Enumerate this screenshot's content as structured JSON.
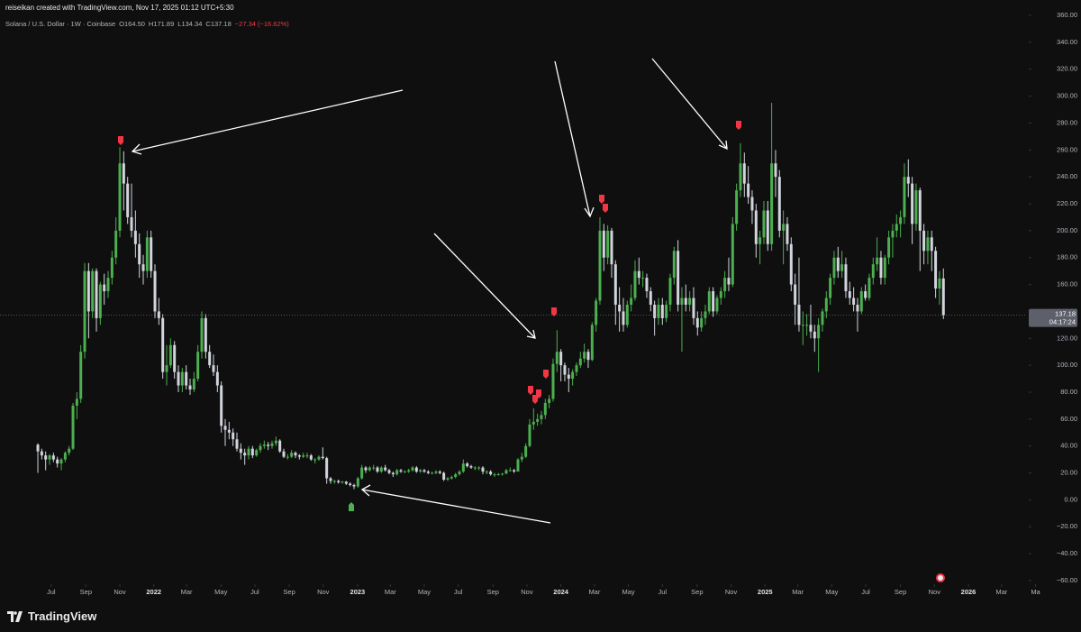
{
  "header": "reiseikan created with TradingView.com, Nov 17, 2025 01:12 UTC+5:30",
  "legend": [
    "Solana / U.S. Dollar · 1W · Coinbase",
    "O164.50",
    "H171.89",
    "L134.34",
    "C137.18",
    "−27.34 (−16.62%)"
  ],
  "countdown": "04:17:24",
  "brand": "TradingView",
  "chart_data": {
    "type": "candlestick",
    "up_color": "#4caf50",
    "down_color": "#d1d4dc",
    "last_price_line": true,
    "xlim": [
      -9.7,
      253.4
    ],
    "xticks": [
      {
        "value": 3.4,
        "label": "Jul"
      },
      {
        "value": 12.3,
        "label": "Sep"
      },
      {
        "value": 21,
        "label": "Nov"
      },
      {
        "value": 29.7,
        "label": "2022"
      },
      {
        "value": 38.1,
        "label": "Mar"
      },
      {
        "value": 46.9,
        "label": "May"
      },
      {
        "value": 55.6,
        "label": "Jul"
      },
      {
        "value": 64.4,
        "label": "Sep"
      },
      {
        "value": 73.1,
        "label": "Nov"
      },
      {
        "value": 81.9,
        "label": "2023"
      },
      {
        "value": 90.3,
        "label": "Mar"
      },
      {
        "value": 99,
        "label": "May"
      },
      {
        "value": 107.7,
        "label": "Jul"
      },
      {
        "value": 116.6,
        "label": "Sep"
      },
      {
        "value": 125.3,
        "label": "Nov"
      },
      {
        "value": 134,
        "label": "2024"
      },
      {
        "value": 142.6,
        "label": "Mar"
      },
      {
        "value": 151.3,
        "label": "May"
      },
      {
        "value": 160,
        "label": "Jul"
      },
      {
        "value": 168.9,
        "label": "Sep"
      },
      {
        "value": 177.6,
        "label": "Nov"
      },
      {
        "value": 186.3,
        "label": "2025"
      },
      {
        "value": 194.7,
        "label": "Mar"
      },
      {
        "value": 203.4,
        "label": "May"
      },
      {
        "value": 212.1,
        "label": "Jul"
      },
      {
        "value": 221,
        "label": "Sep"
      },
      {
        "value": 229.7,
        "label": "Nov"
      },
      {
        "value": 238.4,
        "label": "2026"
      },
      {
        "value": 246.9,
        "label": "Mar"
      },
      {
        "value": 255.6,
        "label": "Ma"
      }
    ],
    "ylim": [
      -62.7,
      364.7
    ],
    "yticks": [
      {
        "value": 360,
        "label": "360.00"
      },
      {
        "value": 340,
        "label": "340.00"
      },
      {
        "value": 320,
        "label": "320.00"
      },
      {
        "value": 300,
        "label": "300.00"
      },
      {
        "value": 280,
        "label": "280.00"
      },
      {
        "value": 260,
        "label": "260.00"
      },
      {
        "value": 240,
        "label": "240.00"
      },
      {
        "value": 220,
        "label": "220.00"
      },
      {
        "value": 200,
        "label": "200.00"
      },
      {
        "value": 180,
        "label": "180.00"
      },
      {
        "value": 160,
        "label": "160.00"
      },
      {
        "value": 140,
        "label": "140.00"
      },
      {
        "value": 120,
        "label": "120.00"
      },
      {
        "value": 100,
        "label": "100.00"
      },
      {
        "value": 80,
        "label": "80.00"
      },
      {
        "value": 60,
        "label": "60.00"
      },
      {
        "value": 40,
        "label": "40.00"
      },
      {
        "value": 20,
        "label": "20.00"
      },
      {
        "value": 0,
        "label": "0.00"
      },
      {
        "value": -20,
        "label": "−20.00"
      },
      {
        "value": -40,
        "label": "−40.00"
      },
      {
        "value": -60,
        "label": "−60.00"
      }
    ],
    "ohlc": [
      [
        41,
        42,
        20,
        36
      ],
      [
        36,
        38,
        30,
        33
      ],
      [
        33,
        36,
        22,
        30
      ],
      [
        30,
        34,
        26,
        33
      ],
      [
        33,
        35,
        28,
        30
      ],
      [
        30,
        32,
        24,
        27
      ],
      [
        27,
        31,
        22,
        30
      ],
      [
        30,
        36,
        28,
        35
      ],
      [
        35,
        40,
        33,
        38
      ],
      [
        38,
        72,
        37,
        70
      ],
      [
        70,
        80,
        60,
        75
      ],
      [
        75,
        115,
        72,
        110
      ],
      [
        110,
        176,
        105,
        170
      ],
      [
        170,
        176,
        120,
        140
      ],
      [
        140,
        172,
        135,
        170
      ],
      [
        170,
        172,
        125,
        135
      ],
      [
        135,
        162,
        130,
        160
      ],
      [
        160,
        168,
        145,
        155
      ],
      [
        155,
        170,
        150,
        165
      ],
      [
        165,
        185,
        160,
        180
      ],
      [
        180,
        210,
        175,
        200
      ],
      [
        200,
        262,
        195,
        250
      ],
      [
        250,
        259,
        215,
        235
      ],
      [
        235,
        240,
        205,
        210
      ],
      [
        210,
        235,
        195,
        200
      ],
      [
        200,
        215,
        180,
        190
      ],
      [
        190,
        198,
        165,
        175
      ],
      [
        175,
        182,
        160,
        170
      ],
      [
        170,
        200,
        165,
        195
      ],
      [
        195,
        200,
        165,
        170
      ],
      [
        170,
        175,
        135,
        140
      ],
      [
        140,
        150,
        130,
        135
      ],
      [
        135,
        138,
        90,
        95
      ],
      [
        95,
        115,
        85,
        100
      ],
      [
        100,
        120,
        98,
        115
      ],
      [
        115,
        118,
        90,
        95
      ],
      [
        95,
        100,
        80,
        85
      ],
      [
        85,
        98,
        80,
        95
      ],
      [
        95,
        100,
        82,
        85
      ],
      [
        85,
        90,
        78,
        82
      ],
      [
        82,
        95,
        80,
        90
      ],
      [
        90,
        115,
        88,
        110
      ],
      [
        110,
        140,
        105,
        135
      ],
      [
        135,
        138,
        105,
        110
      ],
      [
        110,
        115,
        98,
        100
      ],
      [
        100,
        108,
        92,
        95
      ],
      [
        95,
        100,
        80,
        85
      ],
      [
        85,
        88,
        50,
        55
      ],
      [
        55,
        60,
        40,
        52
      ],
      [
        52,
        58,
        45,
        50
      ],
      [
        50,
        53,
        40,
        45
      ],
      [
        45,
        50,
        36,
        38
      ],
      [
        38,
        42,
        30,
        35
      ],
      [
        35,
        38,
        26,
        33
      ],
      [
        33,
        40,
        30,
        38
      ],
      [
        38,
        40,
        31,
        33
      ],
      [
        33,
        38,
        32,
        37
      ],
      [
        37,
        42,
        35,
        40
      ],
      [
        40,
        44,
        38,
        41
      ],
      [
        41,
        43,
        37,
        40
      ],
      [
        40,
        44,
        38,
        42
      ],
      [
        42,
        47,
        40,
        44
      ],
      [
        44,
        45,
        35,
        36
      ],
      [
        36,
        38,
        31,
        32
      ],
      [
        32,
        34,
        30,
        32
      ],
      [
        32,
        37,
        31,
        35
      ],
      [
        35,
        36,
        31,
        33
      ],
      [
        33,
        34,
        30,
        32
      ],
      [
        32,
        35,
        31,
        33
      ],
      [
        33,
        35,
        31,
        33
      ],
      [
        33,
        34,
        29,
        30
      ],
      [
        30,
        31,
        27,
        30
      ],
      [
        30,
        33,
        29,
        32
      ],
      [
        32,
        39,
        30,
        31
      ],
      [
        31,
        32,
        12,
        16
      ],
      [
        16,
        17,
        12,
        14
      ],
      [
        14,
        15,
        12,
        14
      ],
      [
        14,
        15,
        12,
        13
      ],
      [
        13,
        14,
        12,
        13.5
      ],
      [
        13.5,
        14,
        11,
        12
      ],
      [
        12,
        13,
        10,
        11
      ],
      [
        11,
        12,
        8,
        10
      ],
      [
        10,
        17,
        9,
        16
      ],
      [
        16,
        26,
        15,
        24
      ],
      [
        24,
        25,
        20,
        22
      ],
      [
        22,
        25,
        21,
        24
      ],
      [
        24,
        26,
        22,
        24
      ],
      [
        24,
        25,
        20,
        21
      ],
      [
        21,
        25,
        20,
        24
      ],
      [
        24,
        26,
        21,
        22
      ],
      [
        22,
        23,
        19,
        20
      ],
      [
        20,
        21,
        17,
        19
      ],
      [
        19,
        23,
        18,
        22
      ],
      [
        22,
        23,
        20,
        21
      ],
      [
        21,
        22,
        20,
        21
      ],
      [
        21,
        23,
        20,
        22
      ],
      [
        22,
        25,
        21,
        24
      ],
      [
        24,
        25,
        20,
        21
      ],
      [
        21,
        23,
        20,
        22
      ],
      [
        22,
        23,
        20,
        21
      ],
      [
        21,
        22,
        19,
        20
      ],
      [
        20,
        21,
        19,
        20
      ],
      [
        20,
        22,
        19,
        21
      ],
      [
        21,
        22,
        19,
        20
      ],
      [
        20,
        21,
        14,
        15
      ],
      [
        15,
        17,
        14,
        16
      ],
      [
        16,
        18,
        15,
        17
      ],
      [
        17,
        20,
        16,
        19
      ],
      [
        19,
        22,
        18,
        21
      ],
      [
        21,
        30,
        20,
        27
      ],
      [
        27,
        28,
        24,
        25
      ],
      [
        25,
        26,
        23,
        24
      ],
      [
        24,
        25,
        22,
        24
      ],
      [
        24,
        25,
        22,
        24
      ],
      [
        24,
        25,
        19,
        21
      ],
      [
        21,
        22,
        19,
        21
      ],
      [
        21,
        22,
        18,
        19
      ],
      [
        19,
        20,
        17,
        19
      ],
      [
        19,
        20,
        18,
        19
      ],
      [
        19,
        20,
        18,
        19.5
      ],
      [
        19.5,
        23,
        19,
        22
      ],
      [
        22,
        24,
        21,
        22
      ],
      [
        22,
        23,
        20,
        21
      ],
      [
        21,
        31,
        21,
        30
      ],
      [
        30,
        35,
        28,
        32
      ],
      [
        32,
        42,
        31,
        40
      ],
      [
        40,
        60,
        39,
        56
      ],
      [
        56,
        68,
        52,
        58
      ],
      [
        58,
        64,
        55,
        60
      ],
      [
        60,
        66,
        56,
        63
      ],
      [
        63,
        75,
        60,
        72
      ],
      [
        72,
        78,
        68,
        75
      ],
      [
        75,
        105,
        73,
        101
      ],
      [
        101,
        126,
        95,
        110
      ],
      [
        110,
        112,
        88,
        100
      ],
      [
        100,
        102,
        88,
        93
      ],
      [
        93,
        98,
        80,
        90
      ],
      [
        90,
        97,
        85,
        95
      ],
      [
        95,
        102,
        92,
        100
      ],
      [
        100,
        110,
        98,
        105
      ],
      [
        105,
        116,
        102,
        110
      ],
      [
        110,
        112,
        98,
        104
      ],
      [
        104,
        132,
        103,
        130
      ],
      [
        130,
        150,
        125,
        148
      ],
      [
        148,
        210,
        145,
        200
      ],
      [
        200,
        205,
        170,
        180
      ],
      [
        180,
        204,
        175,
        200
      ],
      [
        200,
        202,
        165,
        175
      ],
      [
        175,
        178,
        130,
        145
      ],
      [
        145,
        158,
        125,
        140
      ],
      [
        140,
        150,
        125,
        130
      ],
      [
        130,
        148,
        128,
        145
      ],
      [
        145,
        160,
        140,
        150
      ],
      [
        150,
        178,
        148,
        170
      ],
      [
        170,
        180,
        160,
        165
      ],
      [
        165,
        170,
        158,
        165
      ],
      [
        165,
        168,
        150,
        155
      ],
      [
        155,
        158,
        140,
        145
      ],
      [
        145,
        148,
        122,
        135
      ],
      [
        135,
        150,
        130,
        145
      ],
      [
        145,
        150,
        130,
        135
      ],
      [
        135,
        148,
        132,
        145
      ],
      [
        145,
        168,
        140,
        165
      ],
      [
        165,
        188,
        160,
        185
      ],
      [
        185,
        193,
        140,
        145
      ],
      [
        145,
        158,
        110,
        150
      ],
      [
        150,
        160,
        140,
        145
      ],
      [
        145,
        155,
        140,
        150
      ],
      [
        150,
        158,
        130,
        135
      ],
      [
        135,
        140,
        122,
        128
      ],
      [
        128,
        140,
        125,
        135
      ],
      [
        135,
        145,
        130,
        140
      ],
      [
        140,
        158,
        138,
        155
      ],
      [
        155,
        158,
        136,
        140
      ],
      [
        140,
        152,
        138,
        150
      ],
      [
        150,
        158,
        145,
        155
      ],
      [
        155,
        170,
        150,
        165
      ],
      [
        165,
        180,
        155,
        160
      ],
      [
        160,
        210,
        158,
        205
      ],
      [
        205,
        235,
        200,
        230
      ],
      [
        230,
        265,
        225,
        250
      ],
      [
        250,
        258,
        225,
        235
      ],
      [
        235,
        248,
        220,
        225
      ],
      [
        225,
        230,
        205,
        215
      ],
      [
        215,
        220,
        180,
        190
      ],
      [
        190,
        200,
        175,
        195
      ],
      [
        195,
        222,
        190,
        215
      ],
      [
        215,
        222,
        185,
        190
      ],
      [
        190,
        295,
        185,
        250
      ],
      [
        250,
        260,
        225,
        240
      ],
      [
        240,
        245,
        195,
        200
      ],
      [
        200,
        215,
        175,
        205
      ],
      [
        205,
        210,
        185,
        190
      ],
      [
        190,
        195,
        155,
        160
      ],
      [
        160,
        168,
        130,
        145
      ],
      [
        145,
        180,
        125,
        130
      ],
      [
        130,
        140,
        115,
        130
      ],
      [
        130,
        138,
        122,
        130
      ],
      [
        130,
        145,
        120,
        125
      ],
      [
        125,
        130,
        110,
        120
      ],
      [
        120,
        135,
        95,
        130
      ],
      [
        130,
        142,
        125,
        140
      ],
      [
        140,
        155,
        135,
        150
      ],
      [
        150,
        168,
        145,
        165
      ],
      [
        165,
        185,
        160,
        180
      ],
      [
        180,
        188,
        165,
        170
      ],
      [
        170,
        185,
        165,
        175
      ],
      [
        175,
        180,
        150,
        155
      ],
      [
        155,
        162,
        145,
        150
      ],
      [
        150,
        158,
        140,
        145
      ],
      [
        145,
        150,
        125,
        140
      ],
      [
        140,
        158,
        138,
        155
      ],
      [
        155,
        160,
        148,
        150
      ],
      [
        150,
        168,
        148,
        165
      ],
      [
        165,
        180,
        160,
        175
      ],
      [
        175,
        195,
        170,
        180
      ],
      [
        180,
        185,
        160,
        165
      ],
      [
        165,
        182,
        160,
        180
      ],
      [
        180,
        200,
        175,
        195
      ],
      [
        195,
        205,
        180,
        200
      ],
      [
        200,
        212,
        195,
        205
      ],
      [
        205,
        215,
        195,
        210
      ],
      [
        210,
        250,
        205,
        240
      ],
      [
        240,
        253,
        225,
        235
      ],
      [
        235,
        240,
        190,
        205
      ],
      [
        205,
        235,
        200,
        230
      ],
      [
        230,
        232,
        170,
        200
      ],
      [
        200,
        205,
        175,
        185
      ],
      [
        185,
        200,
        175,
        195
      ],
      [
        195,
        200,
        170,
        185
      ],
      [
        185,
        188,
        150,
        157
      ],
      [
        157,
        170,
        145,
        164.5
      ],
      [
        164.5,
        171.89,
        134.34,
        137.18
      ]
    ]
  }
}
